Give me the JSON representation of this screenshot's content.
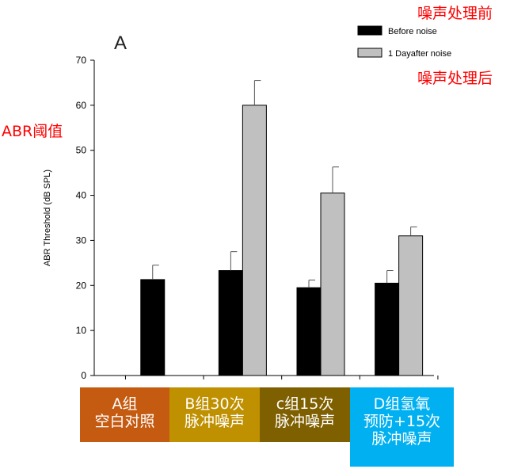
{
  "chart_data": {
    "type": "bar",
    "panel_label": "A",
    "ylabel": "ABR Threshold (dB SPL)",
    "ylim": [
      0,
      70
    ],
    "yticks": [
      0,
      10,
      20,
      30,
      40,
      50,
      60,
      70
    ],
    "categories": [
      "A",
      "B",
      "C",
      "D"
    ],
    "series": [
      {
        "name": "Before noise",
        "color": "#000000",
        "values": [
          21.3,
          23.3,
          19.5,
          20.5
        ],
        "errors": [
          3.2,
          4.2,
          1.7,
          2.8
        ]
      },
      {
        "name": "1 Dayafter noise",
        "color": "#c0c0c0",
        "values": [
          null,
          60.0,
          40.5,
          31.0
        ],
        "errors": [
          null,
          5.5,
          5.8,
          2.0
        ]
      }
    ],
    "legend_position": "top-right"
  },
  "annotations": {
    "before_cn": "噪声处理前",
    "after_cn": "噪声处理后",
    "ylabel_cn": "ABR阈值"
  },
  "group_labels": [
    {
      "lines": [
        "A组",
        "空白对照"
      ],
      "color": "#c55a11"
    },
    {
      "lines": [
        "B组30次",
        "脉冲噪声"
      ],
      "color": "#bf9000"
    },
    {
      "lines": [
        "c组15次",
        "脉冲噪声"
      ],
      "color": "#7f6000"
    },
    {
      "lines": [
        "D组氢氧",
        "预防+15次",
        "脉冲噪声"
      ],
      "color": "#00b0f0"
    }
  ]
}
